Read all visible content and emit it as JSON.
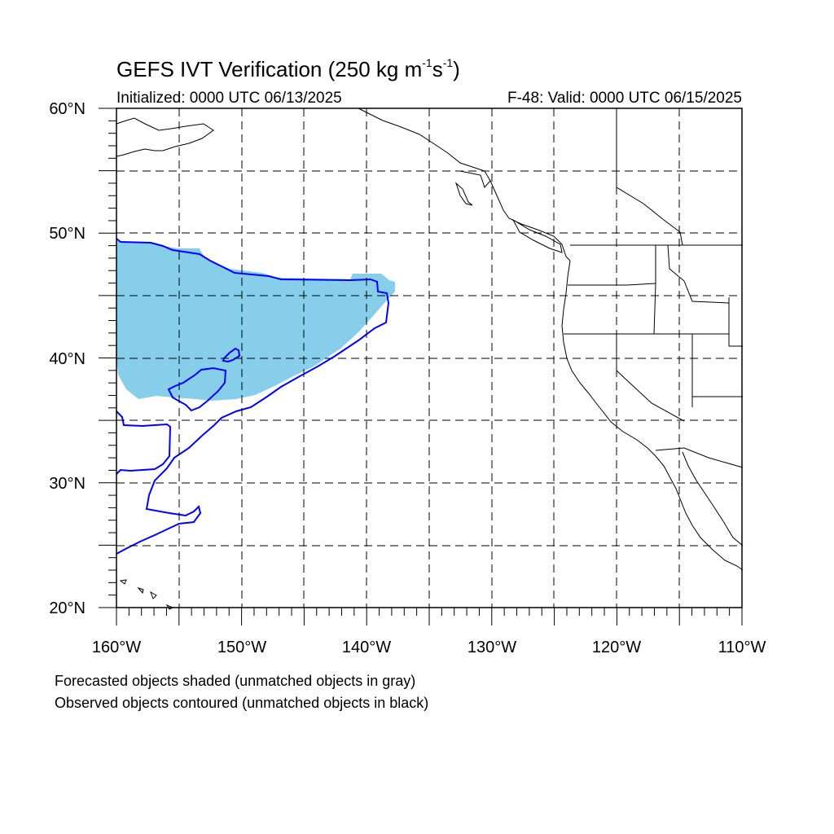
{
  "map": {
    "title_prefix": "GEFS IVT Verification (250 kg m",
    "title_sup1": "-1",
    "title_mid": "s",
    "title_sup2": "-1",
    "title_suffix": ")",
    "initialized": "Initialized: 0000 UTC 06/13/2025",
    "valid": "F-48: Valid: 0000 UTC 06/15/2025",
    "lat_labels": [
      "60°N",
      "50°N",
      "40°N",
      "30°N",
      "20°N"
    ],
    "lon_labels": [
      "160°W",
      "150°W",
      "140°W",
      "130°W",
      "120°W",
      "110°W"
    ],
    "footnote_1": "Forecasted objects shaded (unmatched objects in gray)",
    "footnote_2": "Observed objects contoured (unmatched objects in black)",
    "colors": {
      "forecast_fill": "#87ceeb",
      "observed_contour": "#0000ff",
      "coastline": "#000000",
      "grid": "#000000"
    }
  }
}
